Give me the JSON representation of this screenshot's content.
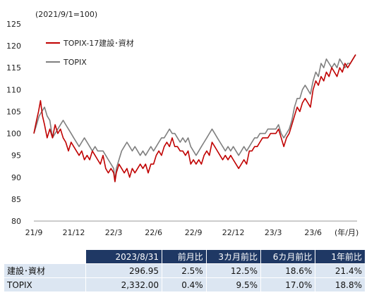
{
  "chart_data": {
    "type": "line",
    "subtitle": "(2021/9/1=100)",
    "xlabel_unit": "(年/月)",
    "ylim": [
      80,
      125
    ],
    "y_ticks": [
      80,
      85,
      90,
      95,
      100,
      105,
      110,
      115,
      120,
      125
    ],
    "x_range": [
      0,
      24.2
    ],
    "x_ticks": [
      {
        "label": "21/9",
        "pos": 0
      },
      {
        "label": "21/12",
        "pos": 3
      },
      {
        "label": "22/3",
        "pos": 6
      },
      {
        "label": "22/6",
        "pos": 9
      },
      {
        "label": "22/9",
        "pos": 12
      },
      {
        "label": "22/12",
        "pos": 15
      },
      {
        "label": "23/3",
        "pos": 18
      },
      {
        "label": "23/6",
        "pos": 21
      }
    ],
    "legend_position": "top-left",
    "series": [
      {
        "name": "TOPIX-17建設･資材",
        "color": "#c00000",
        "points": [
          [
            0,
            100
          ],
          [
            0.2,
            103
          ],
          [
            0.35,
            105
          ],
          [
            0.5,
            107.5
          ],
          [
            0.65,
            104
          ],
          [
            0.8,
            102
          ],
          [
            1.0,
            99
          ],
          [
            1.2,
            101
          ],
          [
            1.4,
            99
          ],
          [
            1.6,
            102
          ],
          [
            1.8,
            100
          ],
          [
            2.0,
            101
          ],
          [
            2.2,
            99
          ],
          [
            2.4,
            98
          ],
          [
            2.6,
            96
          ],
          [
            2.8,
            98
          ],
          [
            3.0,
            97
          ],
          [
            3.2,
            96
          ],
          [
            3.4,
            95
          ],
          [
            3.6,
            96
          ],
          [
            3.8,
            94
          ],
          [
            4.0,
            95
          ],
          [
            4.2,
            94
          ],
          [
            4.4,
            96
          ],
          [
            4.6,
            95
          ],
          [
            4.8,
            94
          ],
          [
            5.0,
            93
          ],
          [
            5.2,
            95
          ],
          [
            5.4,
            92
          ],
          [
            5.6,
            91
          ],
          [
            5.8,
            92
          ],
          [
            6.0,
            91
          ],
          [
            6.1,
            89
          ],
          [
            6.2,
            91
          ],
          [
            6.4,
            93
          ],
          [
            6.6,
            92
          ],
          [
            6.8,
            91
          ],
          [
            7.0,
            92
          ],
          [
            7.2,
            90
          ],
          [
            7.4,
            92
          ],
          [
            7.6,
            91
          ],
          [
            7.8,
            92
          ],
          [
            8.0,
            93
          ],
          [
            8.2,
            92
          ],
          [
            8.4,
            93
          ],
          [
            8.6,
            91
          ],
          [
            8.8,
            93
          ],
          [
            9.0,
            93
          ],
          [
            9.2,
            95
          ],
          [
            9.4,
            96
          ],
          [
            9.6,
            95
          ],
          [
            9.8,
            97
          ],
          [
            10.0,
            98
          ],
          [
            10.2,
            97
          ],
          [
            10.4,
            99
          ],
          [
            10.6,
            97
          ],
          [
            10.8,
            97
          ],
          [
            11.0,
            96
          ],
          [
            11.2,
            96
          ],
          [
            11.4,
            95
          ],
          [
            11.6,
            96
          ],
          [
            11.8,
            93
          ],
          [
            12.0,
            94
          ],
          [
            12.2,
            93
          ],
          [
            12.4,
            94
          ],
          [
            12.6,
            93
          ],
          [
            12.8,
            95
          ],
          [
            13.0,
            96
          ],
          [
            13.2,
            95
          ],
          [
            13.4,
            98
          ],
          [
            13.6,
            97
          ],
          [
            13.8,
            96
          ],
          [
            14.0,
            95
          ],
          [
            14.2,
            94
          ],
          [
            14.4,
            95
          ],
          [
            14.6,
            94
          ],
          [
            14.8,
            95
          ],
          [
            15.0,
            94
          ],
          [
            15.2,
            93
          ],
          [
            15.4,
            92
          ],
          [
            15.6,
            93
          ],
          [
            15.8,
            94
          ],
          [
            16.0,
            93
          ],
          [
            16.2,
            96
          ],
          [
            16.4,
            96
          ],
          [
            16.6,
            97
          ],
          [
            16.8,
            97
          ],
          [
            17.0,
            98
          ],
          [
            17.2,
            99
          ],
          [
            17.4,
            99
          ],
          [
            17.6,
            99
          ],
          [
            17.8,
            100
          ],
          [
            18.0,
            100
          ],
          [
            18.2,
            100
          ],
          [
            18.4,
            101
          ],
          [
            18.6,
            99
          ],
          [
            18.8,
            97
          ],
          [
            19.0,
            99
          ],
          [
            19.2,
            100
          ],
          [
            19.4,
            102
          ],
          [
            19.6,
            104
          ],
          [
            19.8,
            106
          ],
          [
            20.0,
            105
          ],
          [
            20.2,
            107
          ],
          [
            20.4,
            108
          ],
          [
            20.6,
            107
          ],
          [
            20.8,
            106
          ],
          [
            21.0,
            110
          ],
          [
            21.2,
            112
          ],
          [
            21.4,
            111
          ],
          [
            21.6,
            113
          ],
          [
            21.8,
            112
          ],
          [
            22.0,
            114
          ],
          [
            22.2,
            113
          ],
          [
            22.4,
            115
          ],
          [
            22.6,
            114
          ],
          [
            22.8,
            113
          ],
          [
            23.0,
            115
          ],
          [
            23.2,
            114
          ],
          [
            23.4,
            116
          ],
          [
            23.6,
            115
          ],
          [
            23.8,
            116
          ],
          [
            24.0,
            117
          ],
          [
            24.2,
            118
          ]
        ]
      },
      {
        "name": "TOPIX",
        "color": "#7f7f7f",
        "points": [
          [
            0,
            100
          ],
          [
            0.2,
            102
          ],
          [
            0.4,
            104
          ],
          [
            0.6,
            105
          ],
          [
            0.8,
            106
          ],
          [
            1.0,
            104
          ],
          [
            1.2,
            103
          ],
          [
            1.4,
            99
          ],
          [
            1.6,
            100
          ],
          [
            1.8,
            101
          ],
          [
            2.0,
            102
          ],
          [
            2.2,
            103
          ],
          [
            2.4,
            102
          ],
          [
            2.6,
            101
          ],
          [
            2.8,
            100
          ],
          [
            3.0,
            99
          ],
          [
            3.2,
            98
          ],
          [
            3.4,
            97
          ],
          [
            3.6,
            98
          ],
          [
            3.8,
            99
          ],
          [
            4.0,
            98
          ],
          [
            4.2,
            97
          ],
          [
            4.4,
            96
          ],
          [
            4.6,
            97
          ],
          [
            4.8,
            96
          ],
          [
            5.0,
            96
          ],
          [
            5.2,
            96
          ],
          [
            5.4,
            95
          ],
          [
            5.6,
            94
          ],
          [
            5.8,
            93
          ],
          [
            6.0,
            92
          ],
          [
            6.1,
            89
          ],
          [
            6.2,
            92
          ],
          [
            6.4,
            94
          ],
          [
            6.6,
            96
          ],
          [
            6.8,
            97
          ],
          [
            7.0,
            98
          ],
          [
            7.2,
            97
          ],
          [
            7.4,
            96
          ],
          [
            7.6,
            97
          ],
          [
            7.8,
            96
          ],
          [
            8.0,
            95
          ],
          [
            8.2,
            96
          ],
          [
            8.4,
            95
          ],
          [
            8.6,
            96
          ],
          [
            8.8,
            97
          ],
          [
            9.0,
            96
          ],
          [
            9.2,
            97
          ],
          [
            9.4,
            98
          ],
          [
            9.6,
            99
          ],
          [
            9.8,
            99
          ],
          [
            10.0,
            100
          ],
          [
            10.2,
            101
          ],
          [
            10.4,
            100
          ],
          [
            10.6,
            100
          ],
          [
            10.8,
            99
          ],
          [
            11.0,
            98
          ],
          [
            11.2,
            99
          ],
          [
            11.4,
            98
          ],
          [
            11.6,
            99
          ],
          [
            11.8,
            97
          ],
          [
            12.0,
            96
          ],
          [
            12.2,
            95
          ],
          [
            12.4,
            96
          ],
          [
            12.6,
            97
          ],
          [
            12.8,
            98
          ],
          [
            13.0,
            99
          ],
          [
            13.2,
            100
          ],
          [
            13.4,
            101
          ],
          [
            13.6,
            100
          ],
          [
            13.8,
            99
          ],
          [
            14.0,
            98
          ],
          [
            14.2,
            97
          ],
          [
            14.4,
            96
          ],
          [
            14.6,
            97
          ],
          [
            14.8,
            96
          ],
          [
            15.0,
            97
          ],
          [
            15.2,
            96
          ],
          [
            15.4,
            95
          ],
          [
            15.6,
            96
          ],
          [
            15.8,
            97
          ],
          [
            16.0,
            96
          ],
          [
            16.2,
            97
          ],
          [
            16.4,
            98
          ],
          [
            16.6,
            99
          ],
          [
            16.8,
            99
          ],
          [
            17.0,
            100
          ],
          [
            17.2,
            100
          ],
          [
            17.4,
            100
          ],
          [
            17.6,
            101
          ],
          [
            17.8,
            101
          ],
          [
            18.0,
            101
          ],
          [
            18.2,
            101
          ],
          [
            18.4,
            102
          ],
          [
            18.6,
            100
          ],
          [
            18.8,
            99
          ],
          [
            19.0,
            100
          ],
          [
            19.2,
            101
          ],
          [
            19.4,
            103
          ],
          [
            19.6,
            106
          ],
          [
            19.8,
            108
          ],
          [
            20.0,
            108
          ],
          [
            20.2,
            110
          ],
          [
            20.4,
            111
          ],
          [
            20.6,
            110
          ],
          [
            20.8,
            109
          ],
          [
            21.0,
            112
          ],
          [
            21.2,
            114
          ],
          [
            21.4,
            113
          ],
          [
            21.6,
            116
          ],
          [
            21.8,
            115
          ],
          [
            22.0,
            117
          ],
          [
            22.2,
            116
          ],
          [
            22.4,
            115
          ],
          [
            22.6,
            116
          ],
          [
            22.8,
            115
          ],
          [
            23.0,
            117
          ],
          [
            23.2,
            116
          ],
          [
            23.4,
            115
          ],
          [
            23.6,
            116
          ],
          [
            23.8,
            116
          ],
          [
            24.0,
            117
          ],
          [
            24.2,
            118
          ]
        ]
      }
    ]
  },
  "table": {
    "header": [
      "2023/8/31",
      "前月比",
      "3カ月前比",
      "6カ月前比",
      "1年前比"
    ],
    "rows": [
      {
        "name": "建設･資材",
        "cells": [
          "296.95",
          "2.5%",
          "12.5%",
          "18.6%",
          "21.4%"
        ]
      },
      {
        "name": "TOPIX",
        "cells": [
          "2,332.00",
          "0.4%",
          "9.5%",
          "17.0%",
          "18.8%"
        ]
      }
    ]
  }
}
